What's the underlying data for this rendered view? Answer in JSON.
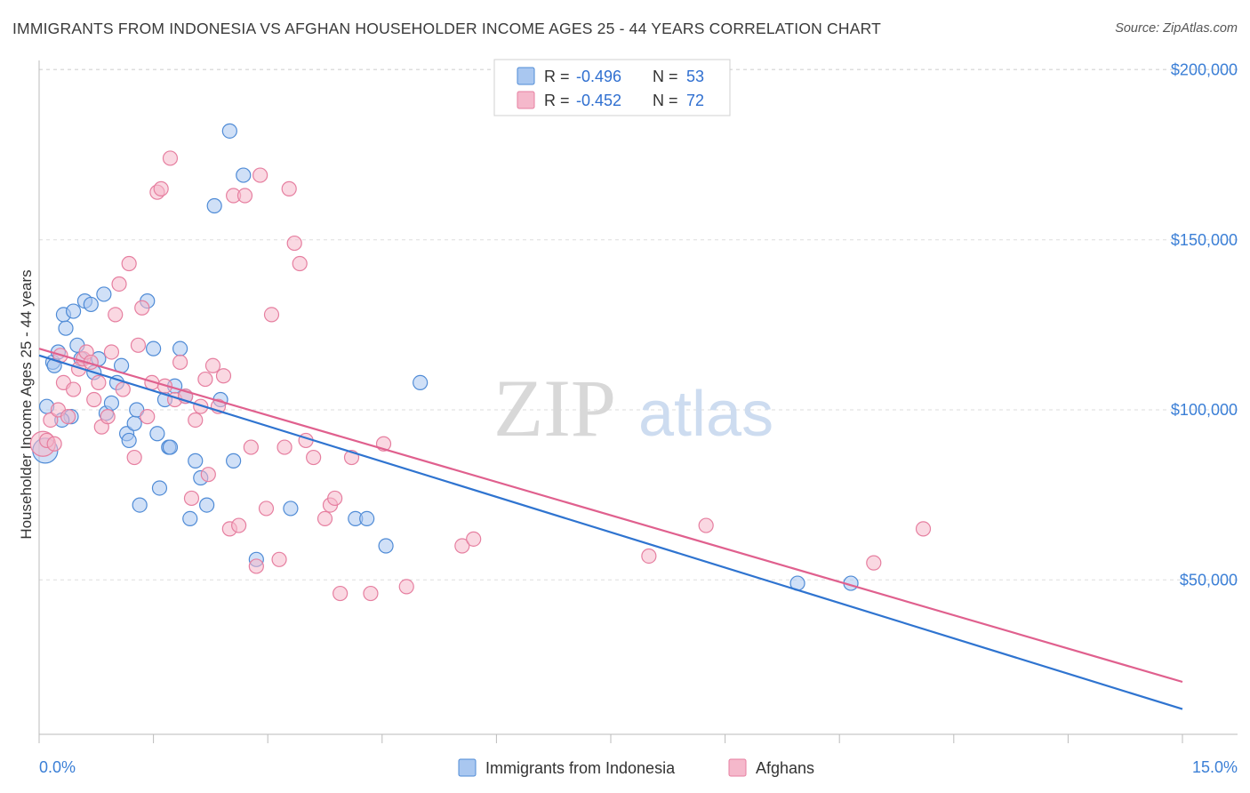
{
  "header": {
    "title": "IMMIGRANTS FROM INDONESIA VS AFGHAN HOUSEHOLDER INCOME AGES 25 - 44 YEARS CORRELATION CHART",
    "source": "Source: ZipAtlas.com"
  },
  "watermark": {
    "zip": "ZIP",
    "atlas": "atlas"
  },
  "stats_legend": {
    "rows": [
      {
        "r_label": "R =",
        "r_value": "-0.496",
        "n_label": "N =",
        "n_value": "53"
      },
      {
        "r_label": "R =",
        "r_value": "-0.452",
        "n_label": "N =",
        "n_value": "72"
      }
    ]
  },
  "colors": {
    "indonesia_fill": "#a9c7f0",
    "indonesia_stroke": "#4f8bd6",
    "indonesia_line": "#2f74d0",
    "afghan_fill": "#f5b8cb",
    "afghan_stroke": "#e67fa0",
    "afghan_line": "#e0608e",
    "grid": "#dddddd",
    "tick_text": "#3b7fd6"
  },
  "chart_data": {
    "type": "scatter",
    "xlabel": "",
    "ylabel": "Householder Income Ages 25 - 44 years",
    "xlim": [
      0,
      15
    ],
    "ylim": [
      0,
      210000
    ],
    "x_tick_labels": [
      "0.0%",
      "15.0%"
    ],
    "y_tick_labels": [
      "$50,000",
      "$100,000",
      "$150,000",
      "$200,000"
    ],
    "y_ticks": [
      50000,
      100000,
      150000,
      200000
    ],
    "grid": true,
    "legend_position": "bottom-center",
    "series": [
      {
        "name": "Immigrants from Indonesia",
        "r": -0.496,
        "n": 53,
        "trend": {
          "x": [
            0,
            15
          ],
          "y": [
            116000,
            12000
          ]
        },
        "points": [
          [
            0.08,
            88000
          ],
          [
            0.1,
            101000
          ],
          [
            0.18,
            114000
          ],
          [
            0.2,
            113000
          ],
          [
            0.25,
            117000
          ],
          [
            0.32,
            128000
          ],
          [
            0.35,
            124000
          ],
          [
            0.42,
            98000
          ],
          [
            0.45,
            129000
          ],
          [
            0.5,
            119000
          ],
          [
            0.55,
            115000
          ],
          [
            0.6,
            132000
          ],
          [
            0.68,
            131000
          ],
          [
            0.72,
            111000
          ],
          [
            0.78,
            115000
          ],
          [
            0.85,
            134000
          ],
          [
            0.88,
            99000
          ],
          [
            0.95,
            102000
          ],
          [
            1.02,
            108000
          ],
          [
            1.08,
            113000
          ],
          [
            1.15,
            93000
          ],
          [
            1.18,
            91000
          ],
          [
            1.25,
            96000
          ],
          [
            1.28,
            100000
          ],
          [
            1.32,
            72000
          ],
          [
            1.42,
            132000
          ],
          [
            1.5,
            118000
          ],
          [
            1.55,
            93000
          ],
          [
            1.58,
            77000
          ],
          [
            1.65,
            103000
          ],
          [
            1.7,
            89000
          ],
          [
            1.72,
            89000
          ],
          [
            1.78,
            107000
          ],
          [
            1.85,
            118000
          ],
          [
            1.92,
            104000
          ],
          [
            1.98,
            68000
          ],
          [
            2.05,
            85000
          ],
          [
            2.12,
            80000
          ],
          [
            2.2,
            72000
          ],
          [
            2.3,
            160000
          ],
          [
            2.38,
            103000
          ],
          [
            2.5,
            182000
          ],
          [
            2.55,
            85000
          ],
          [
            2.68,
            169000
          ],
          [
            2.85,
            56000
          ],
          [
            3.3,
            71000
          ],
          [
            4.15,
            68000
          ],
          [
            4.3,
            68000
          ],
          [
            4.55,
            60000
          ],
          [
            5.0,
            108000
          ],
          [
            9.95,
            49000
          ],
          [
            10.65,
            49000
          ],
          [
            0.3,
            97000
          ]
        ]
      },
      {
        "name": "Afghans",
        "r": -0.452,
        "n": 72,
        "trend": {
          "x": [
            0,
            15
          ],
          "y": [
            118000,
            20000
          ]
        },
        "points": [
          [
            0.05,
            90000
          ],
          [
            0.1,
            91000
          ],
          [
            0.15,
            97000
          ],
          [
            0.25,
            100000
          ],
          [
            0.28,
            116000
          ],
          [
            0.32,
            108000
          ],
          [
            0.38,
            98000
          ],
          [
            0.45,
            106000
          ],
          [
            0.52,
            112000
          ],
          [
            0.58,
            115000
          ],
          [
            0.62,
            117000
          ],
          [
            0.68,
            114000
          ],
          [
            0.72,
            103000
          ],
          [
            0.78,
            108000
          ],
          [
            0.82,
            95000
          ],
          [
            0.9,
            98000
          ],
          [
            0.95,
            117000
          ],
          [
            1.0,
            128000
          ],
          [
            1.05,
            137000
          ],
          [
            1.1,
            106000
          ],
          [
            1.18,
            143000
          ],
          [
            1.25,
            86000
          ],
          [
            1.3,
            119000
          ],
          [
            1.35,
            130000
          ],
          [
            1.42,
            98000
          ],
          [
            1.48,
            108000
          ],
          [
            1.55,
            164000
          ],
          [
            1.6,
            165000
          ],
          [
            1.65,
            107000
          ],
          [
            1.72,
            174000
          ],
          [
            1.78,
            103000
          ],
          [
            1.85,
            114000
          ],
          [
            1.92,
            104000
          ],
          [
            2.0,
            74000
          ],
          [
            2.05,
            97000
          ],
          [
            2.12,
            101000
          ],
          [
            2.18,
            109000
          ],
          [
            2.22,
            81000
          ],
          [
            2.28,
            113000
          ],
          [
            2.35,
            101000
          ],
          [
            2.42,
            110000
          ],
          [
            2.5,
            65000
          ],
          [
            2.55,
            163000
          ],
          [
            2.62,
            66000
          ],
          [
            2.7,
            163000
          ],
          [
            2.78,
            89000
          ],
          [
            2.85,
            54000
          ],
          [
            2.9,
            169000
          ],
          [
            2.98,
            71000
          ],
          [
            3.05,
            128000
          ],
          [
            3.15,
            56000
          ],
          [
            3.22,
            89000
          ],
          [
            3.28,
            165000
          ],
          [
            3.35,
            149000
          ],
          [
            3.42,
            143000
          ],
          [
            3.5,
            91000
          ],
          [
            3.6,
            86000
          ],
          [
            3.75,
            68000
          ],
          [
            3.82,
            72000
          ],
          [
            3.88,
            74000
          ],
          [
            3.95,
            46000
          ],
          [
            4.1,
            86000
          ],
          [
            4.35,
            46000
          ],
          [
            4.52,
            90000
          ],
          [
            4.82,
            48000
          ],
          [
            5.55,
            60000
          ],
          [
            5.7,
            62000
          ],
          [
            8.0,
            57000
          ],
          [
            8.75,
            66000
          ],
          [
            10.95,
            55000
          ],
          [
            11.6,
            65000
          ],
          [
            0.2,
            90000
          ]
        ]
      }
    ]
  }
}
